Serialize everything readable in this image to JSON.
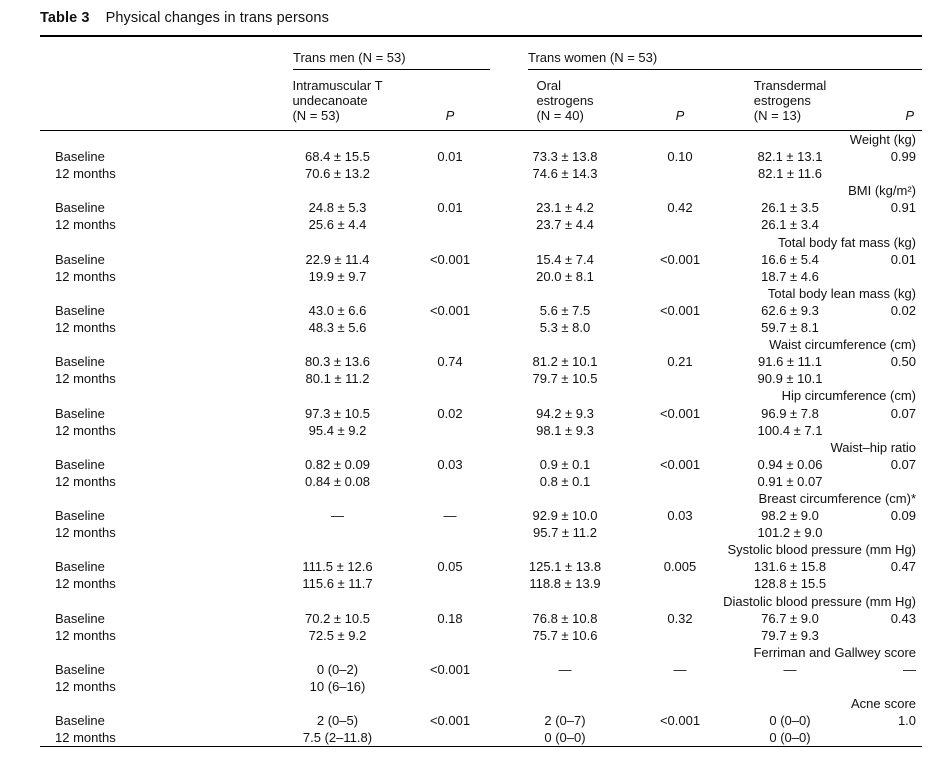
{
  "colors": {
    "ink": "#111111",
    "background": "#ffffff"
  },
  "table": {
    "label": "Table 3",
    "title": "Physical changes in trans persons",
    "groups": [
      {
        "label": "Trans men (N = 53)"
      },
      {
        "label": "Trans women (N = 53)"
      }
    ],
    "columns": [
      {
        "header": "Intramuscular T\nundecanoate\n(N = 53)"
      },
      {
        "header": "P"
      },
      {
        "header": "Oral\nestrogens\n(N = 40)"
      },
      {
        "header": "P"
      },
      {
        "header": "Transdermal\nestrogens\n(N = 13)"
      },
      {
        "header": "P"
      }
    ],
    "sections": [
      {
        "name": "Weight (kg)",
        "rows": [
          {
            "label": "Baseline",
            "cells": [
              "68.4 ± 15.5",
              "0.01",
              "73.3 ± 13.8",
              "0.10",
              "82.1 ± 13.1",
              "0.99"
            ]
          },
          {
            "label": "12 months",
            "cells": [
              "70.6 ± 13.2",
              "",
              "74.6 ± 14.3",
              "",
              "82.1 ± 11.6",
              ""
            ]
          }
        ]
      },
      {
        "name": "BMI (kg/m²)",
        "rows": [
          {
            "label": "Baseline",
            "cells": [
              "24.8 ± 5.3",
              "0.01",
              "23.1 ± 4.2",
              "0.42",
              "26.1 ± 3.5",
              "0.91"
            ]
          },
          {
            "label": "12 months",
            "cells": [
              "25.6 ± 4.4",
              "",
              "23.7 ± 4.4",
              "",
              "26.1 ± 3.4",
              ""
            ]
          }
        ]
      },
      {
        "name": "Total body fat mass (kg)",
        "rows": [
          {
            "label": "Baseline",
            "cells": [
              "22.9 ± 11.4",
              "<0.001",
              "15.4 ± 7.4",
              "<0.001",
              "16.6 ± 5.4",
              "0.01"
            ]
          },
          {
            "label": "12 months",
            "cells": [
              "19.9 ± 9.7",
              "",
              "20.0 ± 8.1",
              "",
              "18.7 ± 4.6",
              ""
            ]
          }
        ]
      },
      {
        "name": "Total body lean mass (kg)",
        "rows": [
          {
            "label": "Baseline",
            "cells": [
              "43.0 ± 6.6",
              "<0.001",
              "5.6 ± 7.5",
              "<0.001",
              "62.6 ± 9.3",
              "0.02"
            ]
          },
          {
            "label": "12 months",
            "cells": [
              "48.3 ± 5.6",
              "",
              "5.3 ± 8.0",
              "",
              "59.7 ± 8.1",
              ""
            ]
          }
        ]
      },
      {
        "name": "Waist circumference (cm)",
        "rows": [
          {
            "label": "Baseline",
            "cells": [
              "80.3 ± 13.6",
              "0.74",
              "81.2 ± 10.1",
              "0.21",
              "91.6 ± 11.1",
              "0.50"
            ]
          },
          {
            "label": "12 months",
            "cells": [
              "80.1 ± 11.2",
              "",
              "79.7 ± 10.5",
              "",
              "90.9 ± 10.1",
              ""
            ]
          }
        ]
      },
      {
        "name": "Hip circumference (cm)",
        "rows": [
          {
            "label": "Baseline",
            "cells": [
              "97.3 ± 10.5",
              "0.02",
              "94.2 ± 9.3",
              "<0.001",
              "96.9 ± 7.8",
              "0.07"
            ]
          },
          {
            "label": "12 months",
            "cells": [
              "95.4 ± 9.2",
              "",
              "98.1 ± 9.3",
              "",
              "100.4 ± 7.1",
              ""
            ]
          }
        ]
      },
      {
        "name": "Waist–hip ratio",
        "rows": [
          {
            "label": "Baseline",
            "cells": [
              "0.82 ± 0.09",
              "0.03",
              "0.9 ± 0.1",
              "<0.001",
              "0.94 ± 0.06",
              "0.07"
            ]
          },
          {
            "label": "12 months",
            "cells": [
              "0.84 ± 0.08",
              "",
              "0.8 ± 0.1",
              "",
              "0.91 ± 0.07",
              ""
            ]
          }
        ]
      },
      {
        "name": "Breast circumference (cm)*",
        "rows": [
          {
            "label": "Baseline",
            "cells": [
              "—",
              "—",
              "92.9 ± 10.0",
              "0.03",
              "98.2 ± 9.0",
              "0.09"
            ]
          },
          {
            "label": "12 months",
            "cells": [
              "",
              "",
              "95.7 ± 11.2",
              "",
              "101.2 ± 9.0",
              ""
            ]
          }
        ]
      },
      {
        "name": "Systolic blood pressure (mm Hg)",
        "rows": [
          {
            "label": "Baseline",
            "cells": [
              "111.5 ± 12.6",
              "0.05",
              "125.1 ± 13.8",
              "0.005",
              "131.6 ± 15.8",
              "0.47"
            ]
          },
          {
            "label": "12 months",
            "cells": [
              "115.6 ± 11.7",
              "",
              "118.8 ± 13.9",
              "",
              "128.8 ± 15.5",
              ""
            ]
          }
        ]
      },
      {
        "name": "Diastolic blood pressure (mm Hg)",
        "rows": [
          {
            "label": "Baseline",
            "cells": [
              "70.2 ± 10.5",
              "0.18",
              "76.8 ± 10.8",
              "0.32",
              "76.7 ± 9.0",
              "0.43"
            ]
          },
          {
            "label": "12 months",
            "cells": [
              "72.5 ± 9.2",
              "",
              "75.7 ± 10.6",
              "",
              "79.7 ± 9.3",
              ""
            ]
          }
        ]
      },
      {
        "name": "Ferriman and Gallwey score",
        "rows": [
          {
            "label": "Baseline",
            "cells": [
              "0 (0–2)",
              "<0.001",
              "—",
              "—",
              "—",
              "—"
            ]
          },
          {
            "label": "12 months",
            "cells": [
              "10 (6–16)",
              "",
              "",
              "",
              "",
              ""
            ]
          }
        ]
      },
      {
        "name": "Acne score",
        "rows": [
          {
            "label": "Baseline",
            "cells": [
              "2 (0–5)",
              "<0.001",
              "2 (0–7)",
              "<0.001",
              "0 (0–0)",
              "1.0"
            ]
          },
          {
            "label": "12 months",
            "cells": [
              "7.5 (2–11.8)",
              "",
              "0 (0–0)",
              "",
              "0 (0–0)",
              ""
            ]
          }
        ]
      }
    ]
  }
}
